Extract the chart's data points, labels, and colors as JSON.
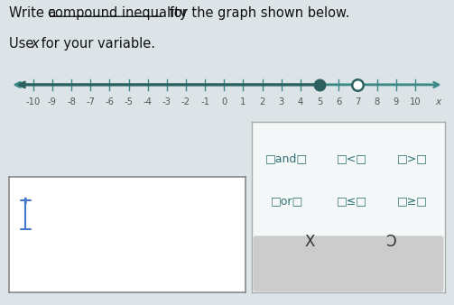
{
  "bg_color": "#dde4e8",
  "number_line": {
    "line_color": "#3a8a8a",
    "label_color": "#555555",
    "filled_dot": 5,
    "open_dot": 7,
    "dot_color": "#2d6060"
  },
  "title_color": "#111111",
  "title_fontsize": 10.5,
  "answer_box": {
    "face_color": "#ffffff",
    "edge_color": "#888888",
    "icon_color": "#4477cc"
  },
  "option_box": {
    "face_color": "#f5f8f8",
    "edge_color": "#aaaaaa"
  },
  "options_row1": [
    "□and□",
    "□<□",
    "□>□"
  ],
  "options_row2": [
    "□or□",
    "□≤□",
    "□≥□"
  ],
  "bottom_row": [
    "X",
    "Ɔ"
  ],
  "option_text_color": "#2d7070",
  "option_fontsize": 9,
  "bottom_bg": "#cccccc",
  "bottom_text_color": "#333333"
}
